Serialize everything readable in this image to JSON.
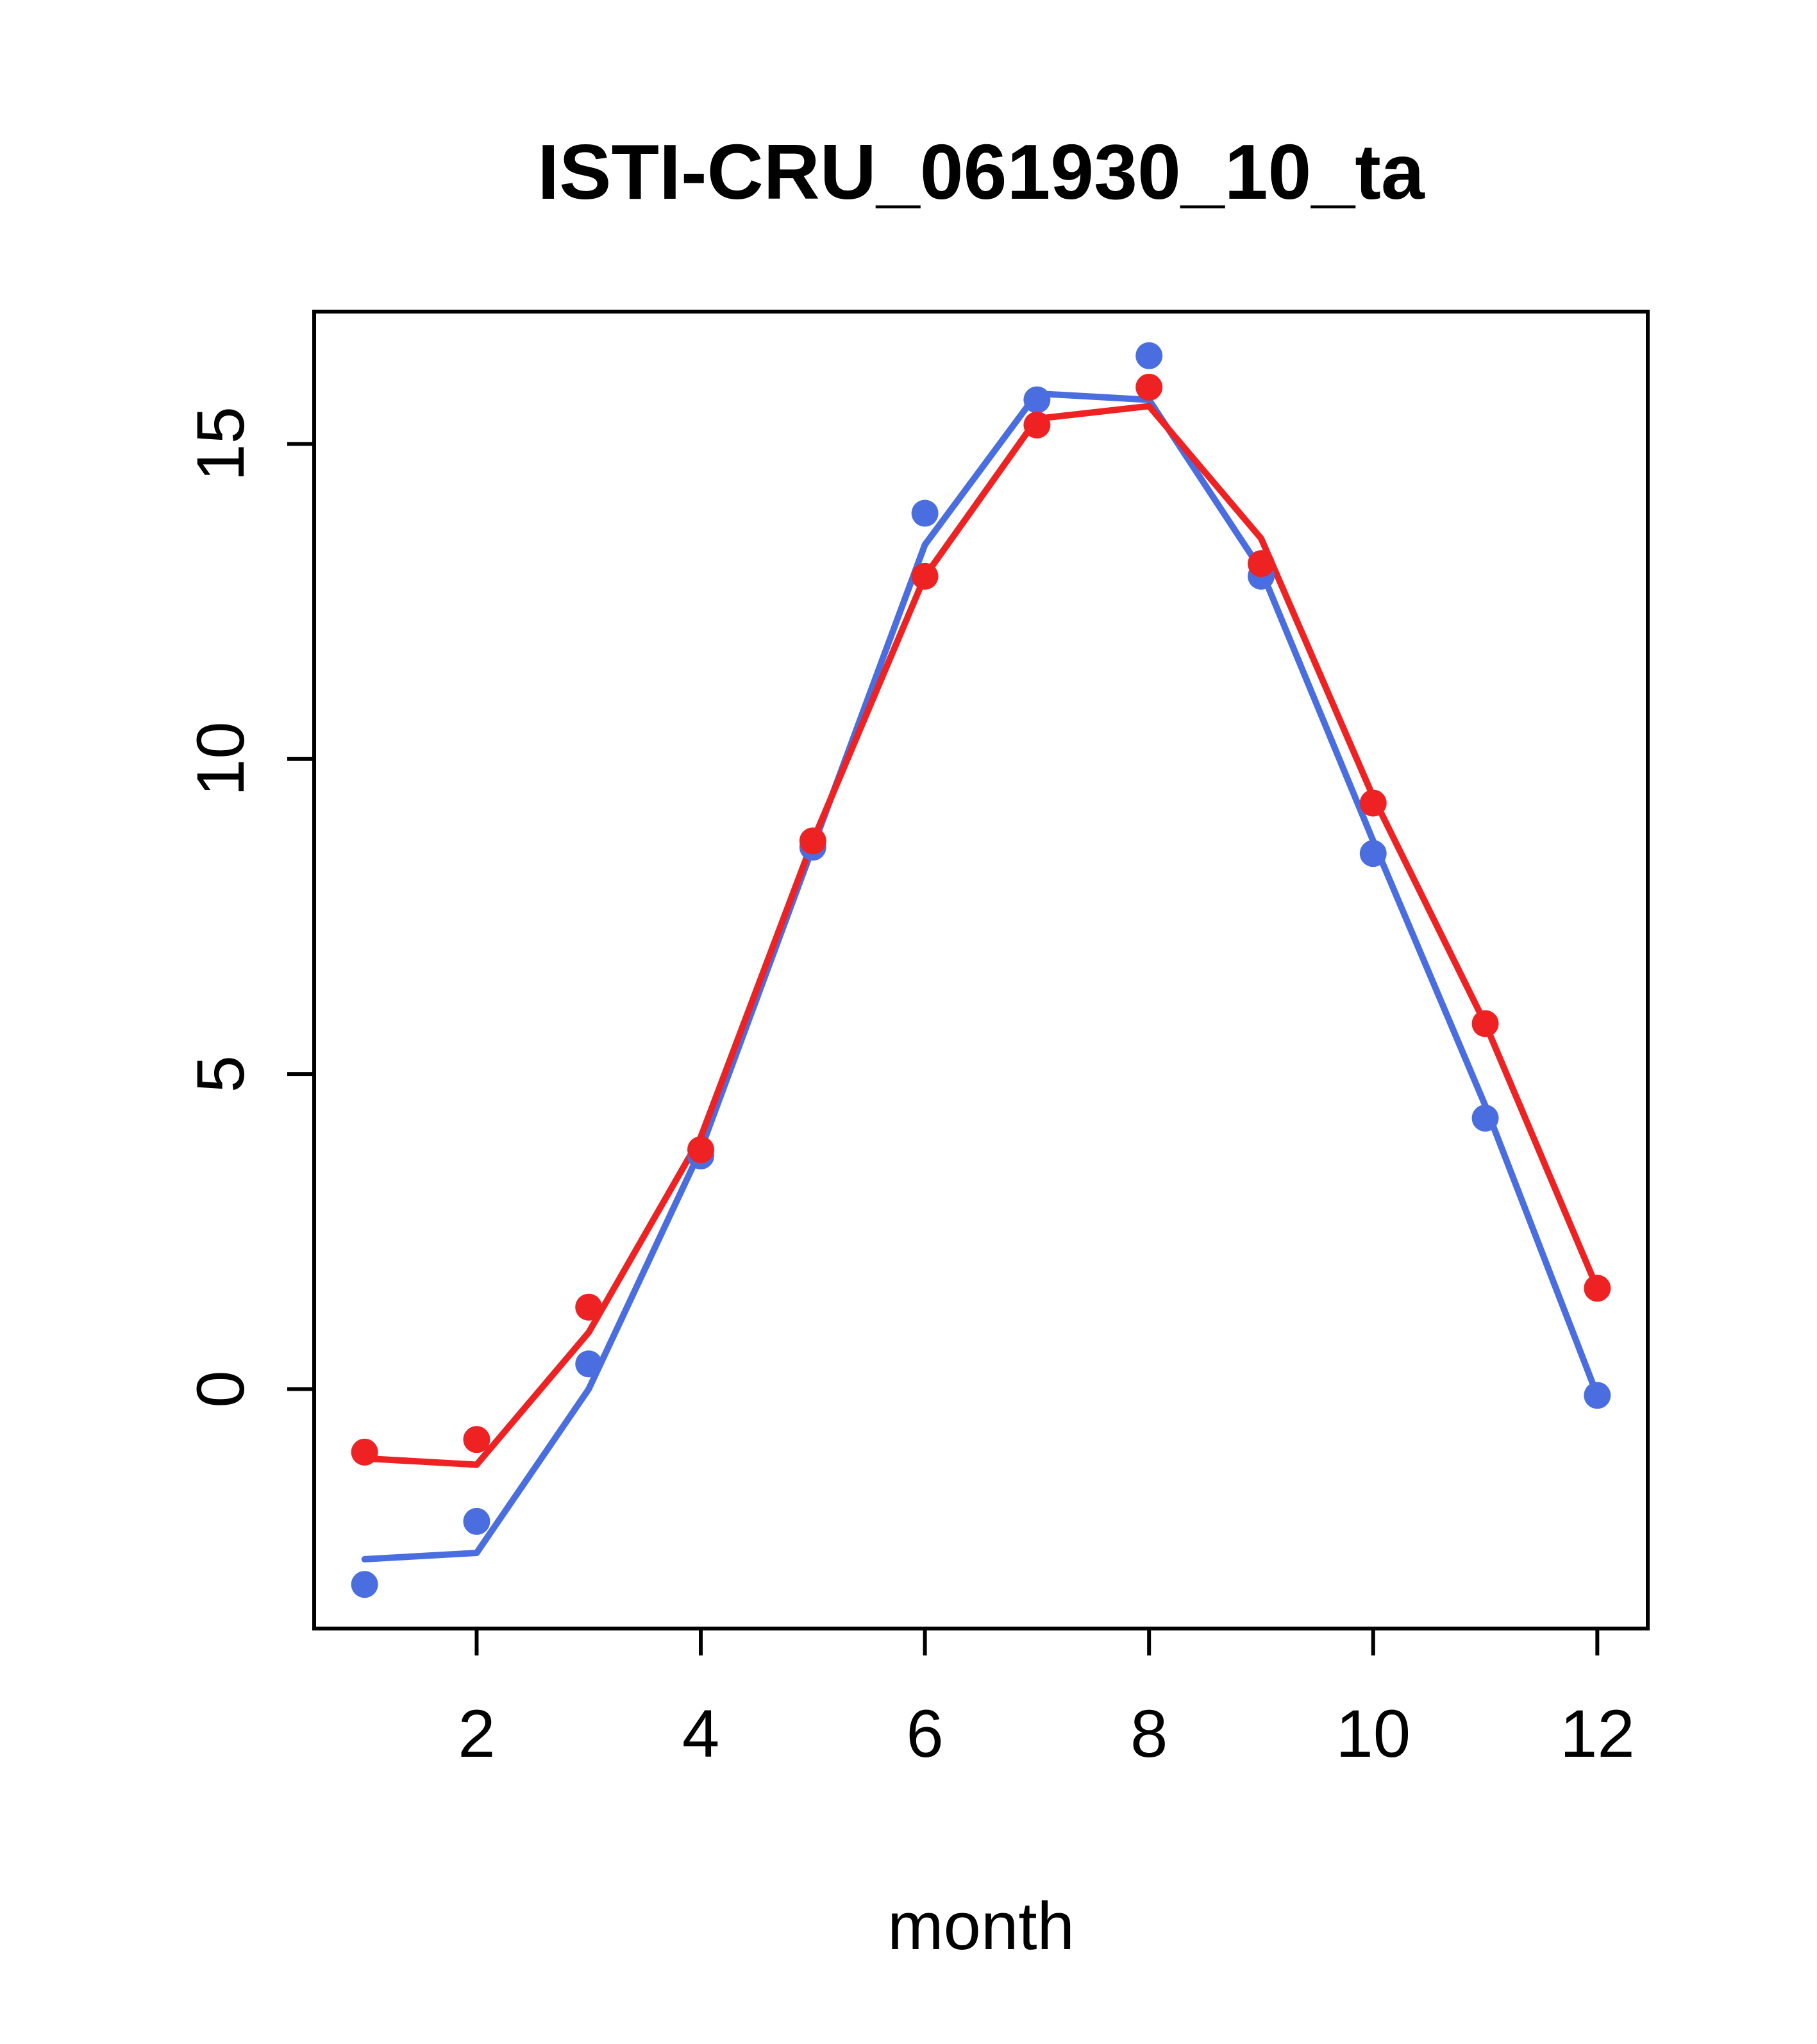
{
  "chart_data": {
    "type": "line",
    "title": "ISTI-CRU_061930_10_ta",
    "xlabel": "month",
    "ylabel": "",
    "x": [
      1,
      2,
      3,
      4,
      5,
      6,
      7,
      8,
      9,
      10,
      11,
      12
    ],
    "xlim": [
      0.55,
      12.45
    ],
    "ylim": [
      -3.8,
      17.1
    ],
    "xticks": [
      2,
      4,
      6,
      8,
      10,
      12
    ],
    "yticks": [
      0,
      5,
      10,
      15
    ],
    "grid": false,
    "legend": "none",
    "colors": {
      "red": "#ee2222",
      "blue": "#4a6ee0"
    },
    "series": [
      {
        "name": "blue-line",
        "type": "line",
        "color": "blue",
        "values": [
          -2.7,
          -2.6,
          0.0,
          3.8,
          8.6,
          13.4,
          15.8,
          15.7,
          13.0,
          8.7,
          4.5,
          -0.1
        ]
      },
      {
        "name": "red-line",
        "type": "line",
        "color": "red",
        "values": [
          -1.1,
          -1.2,
          0.9,
          4.0,
          8.7,
          12.9,
          15.4,
          15.6,
          13.5,
          9.4,
          5.8,
          1.6
        ]
      },
      {
        "name": "blue-points",
        "type": "points",
        "color": "blue",
        "values": [
          -3.1,
          -2.1,
          0.4,
          3.7,
          8.6,
          13.9,
          15.7,
          16.4,
          12.9,
          8.5,
          4.3,
          -0.1
        ]
      },
      {
        "name": "red-points",
        "type": "points",
        "color": "red",
        "values": [
          -1.0,
          -0.8,
          1.3,
          3.8,
          8.7,
          12.9,
          15.3,
          15.9,
          13.1,
          9.3,
          5.8,
          1.6
        ]
      }
    ]
  }
}
